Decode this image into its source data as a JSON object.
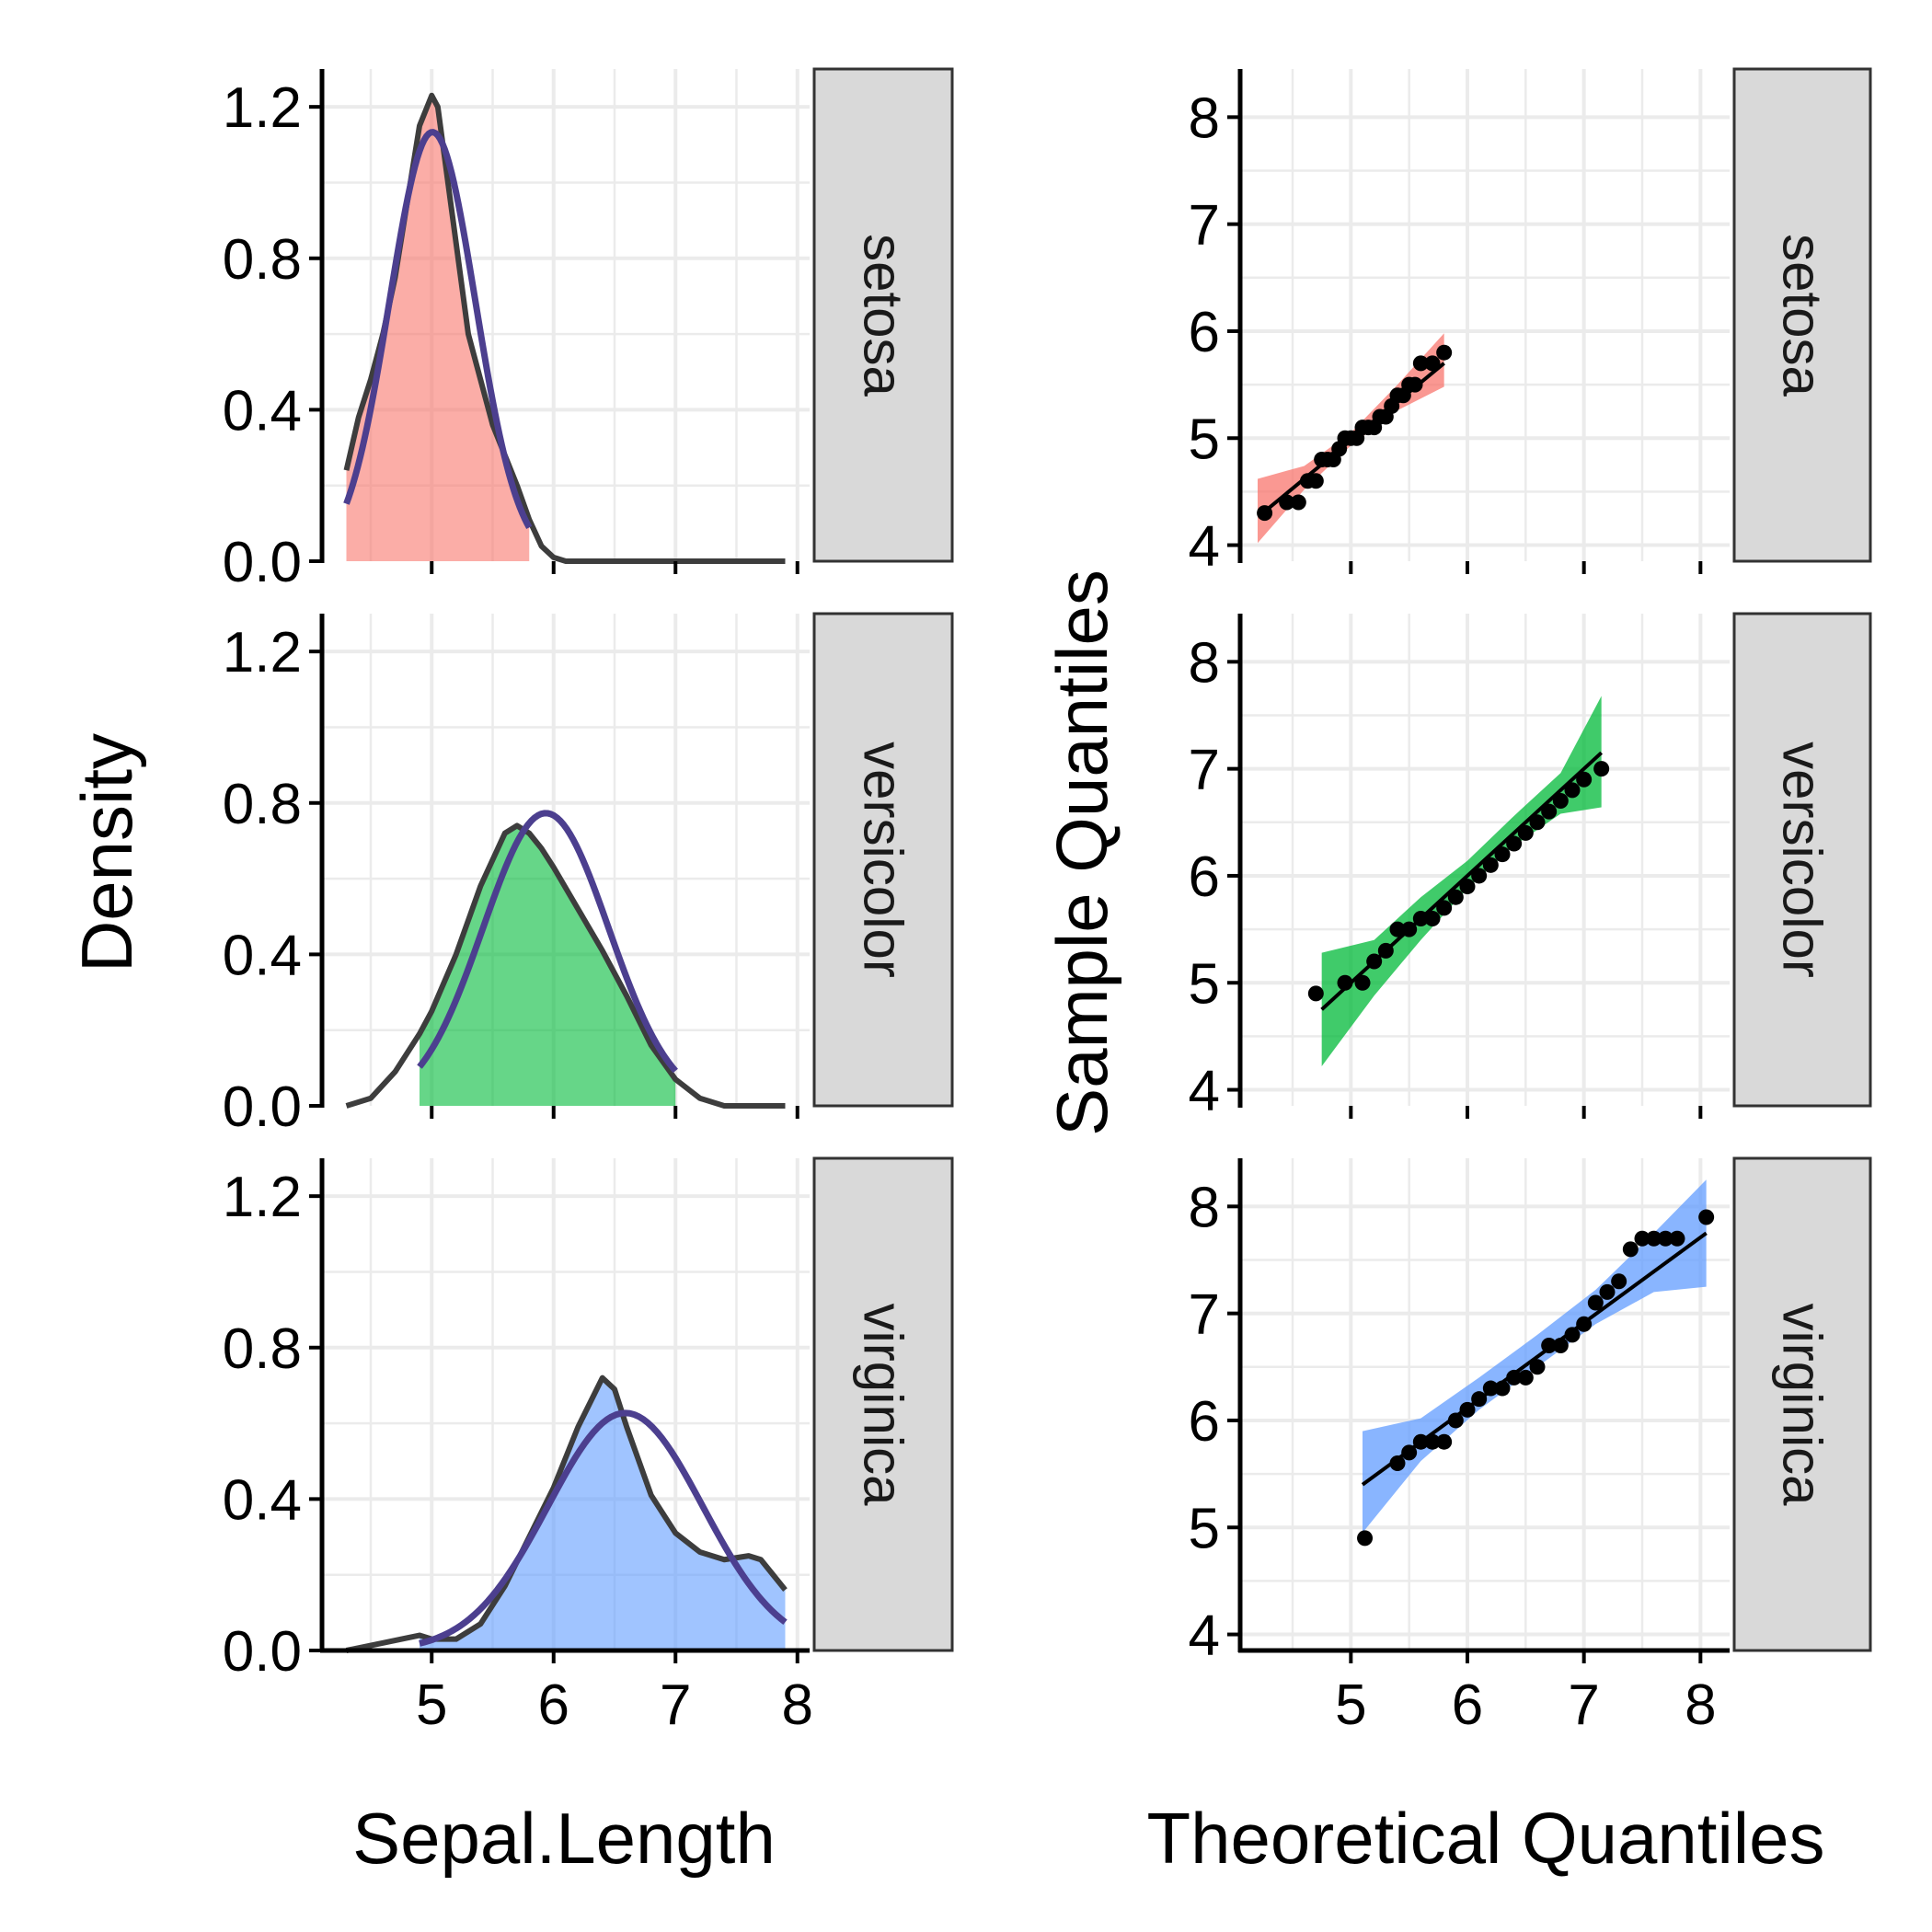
{
  "figure": {
    "left_xlabel": "Sepal.Length",
    "left_ylabel": "Density",
    "right_xlabel": "Theoretical Quantiles",
    "right_ylabel": "Sample Quantiles"
  },
  "chart_data": [
    {
      "type": "area",
      "panel": "density",
      "xlabel": "Sepal.Length",
      "ylabel": "Density",
      "xlim": [
        4.1,
        8.1
      ],
      "ylim": [
        0,
        1.3
      ],
      "x_ticks": [
        5,
        6,
        7,
        8
      ],
      "y_ticks": [
        0.0,
        0.4,
        0.8,
        1.2
      ],
      "y_tick_labels": [
        "0.0",
        "0.4",
        "0.8",
        "1.2"
      ],
      "grid": true,
      "facets": [
        {
          "name": "setosa",
          "fill_color": "#F8766D",
          "fill_range": [
            4.3,
            5.8
          ],
          "kde": {
            "x": [
              4.3,
              4.4,
              4.5,
              4.6,
              4.7,
              4.8,
              4.9,
              5.0,
              5.05,
              5.1,
              5.2,
              5.3,
              5.4,
              5.5,
              5.6,
              5.7,
              5.8,
              5.9,
              6.0,
              6.1,
              6.2,
              6.4,
              7.0,
              7.9
            ],
            "y": [
              0.24,
              0.38,
              0.48,
              0.6,
              0.75,
              0.95,
              1.15,
              1.23,
              1.2,
              1.08,
              0.84,
              0.6,
              0.48,
              0.36,
              0.28,
              0.2,
              0.11,
              0.04,
              0.01,
              0.0,
              0.0,
              0.0,
              0.0,
              0.0
            ]
          },
          "normal": {
            "mean": 5.006,
            "sd": 0.352,
            "x_range": [
              4.3,
              5.8
            ]
          }
        },
        {
          "name": "versicolor",
          "fill_color": "#00BA38",
          "fill_range": [
            4.9,
            7.0
          ],
          "kde": {
            "x": [
              4.3,
              4.5,
              4.7,
              4.9,
              5.0,
              5.2,
              5.4,
              5.6,
              5.7,
              5.8,
              5.9,
              6.0,
              6.2,
              6.4,
              6.6,
              6.8,
              7.0,
              7.2,
              7.4,
              7.6,
              7.9
            ],
            "y": [
              0.0,
              0.02,
              0.09,
              0.19,
              0.25,
              0.4,
              0.58,
              0.72,
              0.74,
              0.72,
              0.68,
              0.63,
              0.52,
              0.41,
              0.29,
              0.16,
              0.07,
              0.02,
              0.0,
              0.0,
              0.0
            ]
          },
          "normal": {
            "mean": 5.936,
            "sd": 0.516,
            "x_range": [
              4.9,
              7.0
            ]
          }
        },
        {
          "name": "virginica",
          "fill_color": "#619CFF",
          "fill_range": [
            4.9,
            7.9
          ],
          "kde": {
            "x": [
              4.3,
              4.6,
              4.9,
              5.0,
              5.2,
              5.4,
              5.6,
              5.8,
              6.0,
              6.2,
              6.4,
              6.5,
              6.6,
              6.8,
              7.0,
              7.2,
              7.4,
              7.6,
              7.7,
              7.8,
              7.9
            ],
            "y": [
              0.0,
              0.02,
              0.04,
              0.03,
              0.03,
              0.07,
              0.17,
              0.3,
              0.43,
              0.59,
              0.72,
              0.69,
              0.59,
              0.41,
              0.31,
              0.26,
              0.24,
              0.25,
              0.24,
              0.2,
              0.16
            ]
          },
          "normal": {
            "mean": 6.588,
            "sd": 0.636,
            "x_range": [
              4.9,
              7.9
            ]
          }
        }
      ]
    },
    {
      "type": "scatter",
      "panel": "qq",
      "xlabel": "Theoretical Quantiles",
      "ylabel": "Sample Quantiles",
      "xlim": [
        4.05,
        8.25
      ],
      "ylim": [
        3.85,
        8.45
      ],
      "x_ticks": [
        5,
        6,
        7,
        8
      ],
      "y_ticks": [
        4,
        5,
        6,
        7,
        8
      ],
      "grid": true,
      "facets": [
        {
          "name": "setosa",
          "band_color": "#F8766D",
          "line": [
            [
              4.3,
              4.35
            ],
            [
              5.8,
              5.7
            ]
          ],
          "band": {
            "x": [
              4.2,
              4.6,
              5.0,
              5.4,
              5.8
            ],
            "lower": [
              4.02,
              4.52,
              4.93,
              5.26,
              5.48
            ],
            "upper": [
              4.62,
              4.74,
              5.05,
              5.5,
              5.98
            ]
          },
          "points": {
            "x": [
              4.26,
              4.45,
              4.55,
              4.63,
              4.7,
              4.75,
              4.8,
              4.85,
              4.9,
              4.95,
              5.0,
              5.05,
              5.1,
              5.15,
              5.2,
              5.25,
              5.3,
              5.35,
              5.4,
              5.45,
              5.5,
              5.55,
              5.6,
              5.7,
              5.8
            ],
            "y": [
              4.3,
              4.4,
              4.4,
              4.6,
              4.6,
              4.8,
              4.8,
              4.8,
              4.9,
              5.0,
              5.0,
              5.0,
              5.1,
              5.1,
              5.1,
              5.2,
              5.2,
              5.3,
              5.4,
              5.4,
              5.5,
              5.5,
              5.7,
              5.7,
              5.8
            ]
          }
        },
        {
          "name": "versicolor",
          "band_color": "#00BA38",
          "line": [
            [
              4.75,
              4.75
            ],
            [
              7.15,
              7.15
            ]
          ],
          "band": {
            "x": [
              4.75,
              5.2,
              5.6,
              6.0,
              6.4,
              6.8,
              7.15
            ],
            "lower": [
              4.22,
              4.88,
              5.4,
              5.88,
              6.28,
              6.58,
              6.64
            ],
            "upper": [
              5.28,
              5.4,
              5.8,
              6.14,
              6.56,
              6.96,
              7.68
            ]
          },
          "points": {
            "x": [
              4.7,
              4.95,
              5.1,
              5.2,
              5.3,
              5.4,
              5.5,
              5.6,
              5.7,
              5.8,
              5.9,
              6.0,
              6.1,
              6.2,
              6.3,
              6.4,
              6.5,
              6.6,
              6.7,
              6.8,
              6.9,
              7.0,
              7.15
            ],
            "y": [
              4.9,
              5.0,
              5.0,
              5.2,
              5.3,
              5.5,
              5.5,
              5.6,
              5.6,
              5.7,
              5.8,
              5.9,
              6.0,
              6.1,
              6.2,
              6.3,
              6.4,
              6.5,
              6.6,
              6.7,
              6.8,
              6.9,
              7.0
            ]
          }
        },
        {
          "name": "virginica",
          "band_color": "#619CFF",
          "line": [
            [
              5.1,
              5.4
            ],
            [
              8.05,
              7.75
            ]
          ],
          "band": {
            "x": [
              5.1,
              5.6,
              6.1,
              6.6,
              7.1,
              7.6,
              8.05
            ],
            "lower": [
              4.95,
              5.62,
              6.1,
              6.5,
              6.9,
              7.2,
              7.25
            ],
            "upper": [
              5.9,
              6.02,
              6.4,
              6.8,
              7.22,
              7.75,
              8.25
            ]
          },
          "points": {
            "x": [
              5.12,
              5.4,
              5.5,
              5.6,
              5.7,
              5.8,
              5.9,
              6.0,
              6.1,
              6.2,
              6.3,
              6.4,
              6.5,
              6.6,
              6.7,
              6.8,
              6.9,
              7.0,
              7.1,
              7.2,
              7.3,
              7.4,
              7.5,
              7.6,
              7.7,
              7.8,
              8.05
            ],
            "y": [
              4.9,
              5.6,
              5.7,
              5.8,
              5.8,
              5.8,
              6.0,
              6.1,
              6.2,
              6.3,
              6.3,
              6.4,
              6.4,
              6.5,
              6.7,
              6.7,
              6.8,
              6.9,
              7.1,
              7.2,
              7.3,
              7.6,
              7.7,
              7.7,
              7.7,
              7.7,
              7.9
            ]
          }
        }
      ]
    }
  ]
}
